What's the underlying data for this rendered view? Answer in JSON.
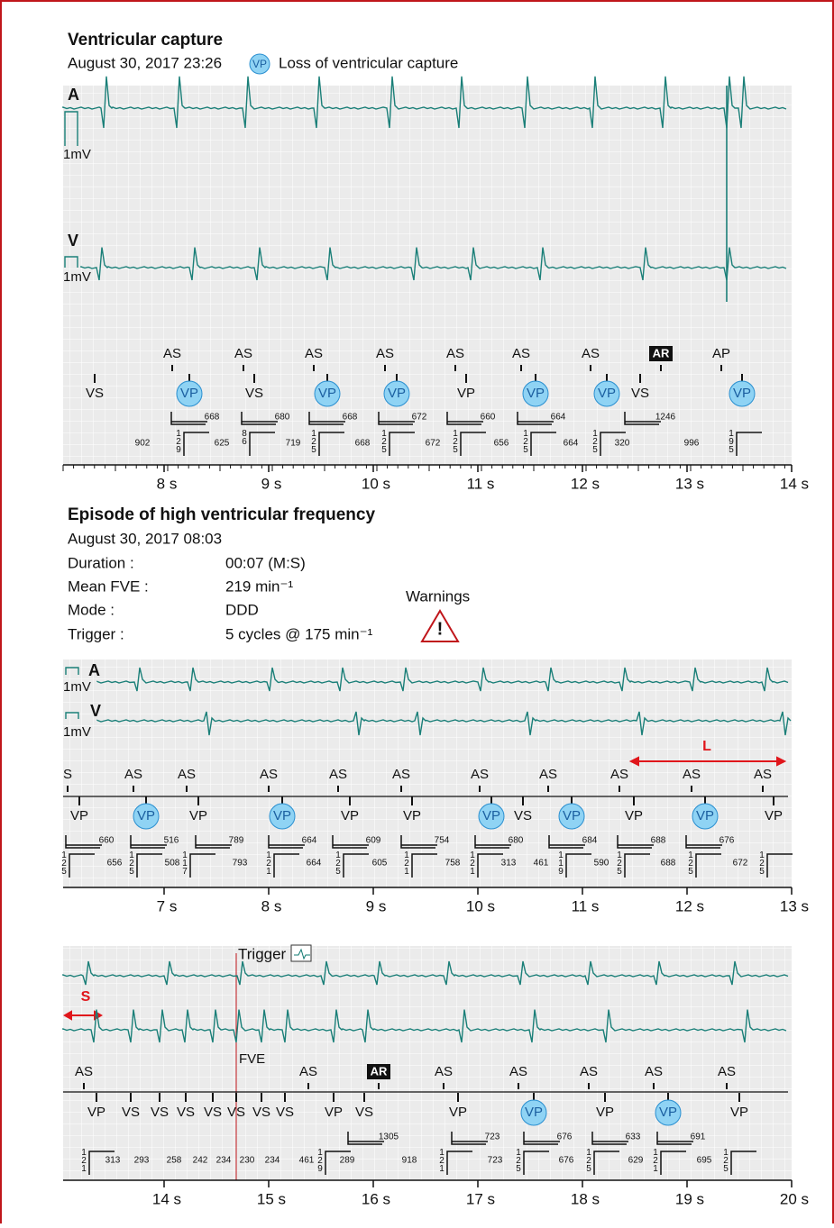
{
  "panel1": {
    "title": "Ventricular capture",
    "date": "August 30, 2017 23:26",
    "legend_badge": "VP",
    "legend_text": "Loss of ventricular capture",
    "channels": [
      "A",
      "V"
    ],
    "scale_labels": [
      "1mV",
      "1mV"
    ],
    "atrial_markers": [
      "AS",
      "AS",
      "AS",
      "AS",
      "AS",
      "AS",
      "AS",
      "AR",
      "AP"
    ],
    "ventricular_markers": [
      "VS",
      "VP",
      "VS",
      "VP",
      "VP",
      "VP",
      "VP",
      "VP",
      "VS",
      "VP"
    ],
    "upper_intervals": [
      "668",
      "680",
      "668",
      "672",
      "660",
      "664",
      "1246"
    ],
    "lower_intervals": [
      "902",
      "625",
      "719",
      "668",
      "672",
      "656",
      "664",
      "320",
      "996"
    ],
    "vertical_intervals": [
      "129",
      "86",
      "125",
      "125",
      "125",
      "125",
      "125",
      "195"
    ],
    "time_ticks": [
      "8 s",
      "9 s",
      "10 s",
      "11 s",
      "12 s",
      "13 s",
      "14 s"
    ]
  },
  "panel2": {
    "title": "Episode of high ventricular frequency",
    "date": "August 30, 2017 08:03",
    "details": [
      {
        "label": "Duration :",
        "value": "00:07 (M:S)"
      },
      {
        "label": "Mean FVE :",
        "value": "219 min⁻¹"
      },
      {
        "label": "Mode :",
        "value": "DDD"
      },
      {
        "label": "Trigger :",
        "value": "5 cycles @ 175 min⁻¹"
      }
    ],
    "warnings": "Warnings",
    "strip1": {
      "channels": [
        "A",
        "V"
      ],
      "scale_labels": [
        "1mV",
        "1mV"
      ],
      "annotation": "L",
      "atrial_markers": [
        "S",
        "AS",
        "AS",
        "AS",
        "AS",
        "AS",
        "AS",
        "AS",
        "AS",
        "AS",
        "AS"
      ],
      "ventricular_markers": [
        "VP",
        "VP",
        "VP",
        "VP",
        "VP",
        "VP",
        "VP",
        "VS",
        "VP",
        "VP",
        "VP",
        "VP"
      ],
      "upper_intervals": [
        "660",
        "516",
        "789",
        "664",
        "609",
        "754",
        "680",
        "684",
        "688",
        "676"
      ],
      "lower_intervals": [
        "656",
        "508",
        "793",
        "664",
        "605",
        "758",
        "313",
        "461",
        "590",
        "688",
        "672"
      ],
      "vertical_intervals": [
        "125",
        "125",
        "117",
        "121",
        "125",
        "121",
        "121",
        "119",
        "125",
        "125",
        "125"
      ],
      "time_ticks": [
        "7 s",
        "8 s",
        "9 s",
        "10 s",
        "11 s",
        "12 s",
        "13 s"
      ]
    },
    "strip2": {
      "trigger": "Trigger",
      "annotation": "S",
      "fve": "FVE",
      "atrial_markers": [
        "AS",
        "AS",
        "AR",
        "AS",
        "AS",
        "AS",
        "AS",
        "AS"
      ],
      "ventricular_markers": [
        "VP",
        "VS",
        "VS",
        "VS",
        "VS",
        "VS",
        "VS",
        "VS",
        "VP",
        "VS",
        "VP",
        "VP",
        "VP",
        "VP",
        "VP"
      ],
      "upper_intervals": [
        "1305",
        "723",
        "676",
        "633",
        "691"
      ],
      "lower_intervals": [
        "313",
        "293",
        "258",
        "242",
        "234",
        "230",
        "234",
        "461",
        "289",
        "918",
        "723",
        "676",
        "629",
        "695"
      ],
      "vertical_intervals": [
        "121",
        "129",
        "121",
        "125",
        "125",
        "121",
        "125"
      ],
      "time_ticks": [
        "14 s",
        "15 s",
        "16 s",
        "17 s",
        "18 s",
        "19 s",
        "20 s"
      ]
    }
  }
}
